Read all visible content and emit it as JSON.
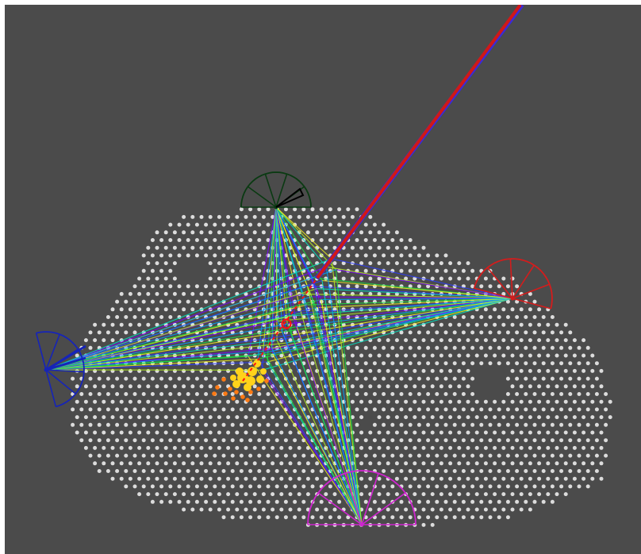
{
  "colors": {
    "background": "#4b4b4b",
    "page_border": "#ffffff",
    "detector_pixel": "#dcdcdc",
    "shower_core": "#ffd21a",
    "shower_halo": "#ff7a14",
    "shower_axis": "#ff1010",
    "primary_track": "#d01818",
    "primary_track_edge": "#3b2bd6"
  },
  "telescopes": [
    {
      "id": "north",
      "color": "#0a3a12"
    },
    {
      "id": "east",
      "color": "#d41c1c"
    },
    {
      "id": "west",
      "color": "#1624b8"
    },
    {
      "id": "south",
      "color": "#cf24cf"
    }
  ],
  "light_rays": {
    "color_scale": "spectrum",
    "fan_colors": [
      "#7a00ff",
      "#2b3bff",
      "#00a0ff",
      "#00e0c0",
      "#18e040",
      "#b4f020",
      "#f0f020"
    ]
  }
}
